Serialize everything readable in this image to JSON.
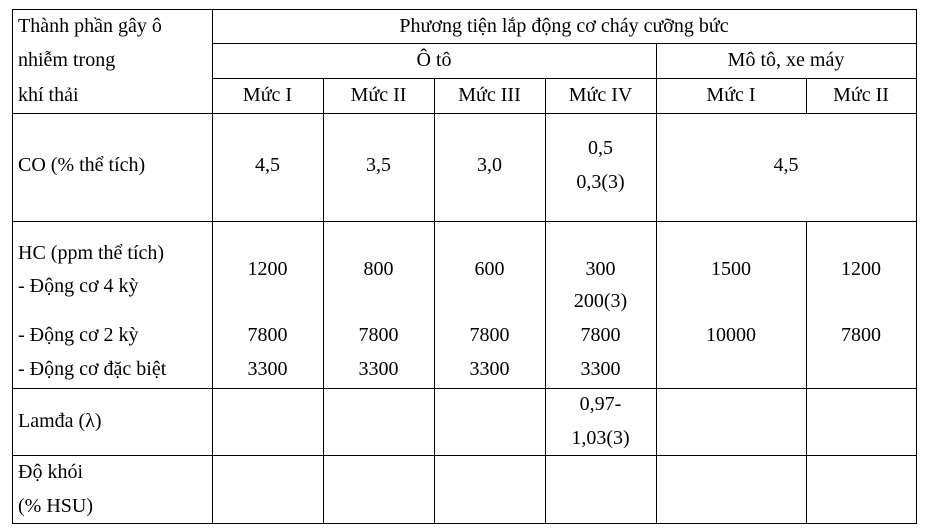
{
  "table": {
    "header": {
      "row_header": [
        "Thành phần gây ô",
        "nhiễm trong",
        "khí thải"
      ],
      "group": "Phương tiện lắp động cơ cháy cưỡng bức",
      "subgroups": [
        "Ô tô",
        "Mô tô, xe máy"
      ],
      "levels": [
        "Mức I",
        "Mức II",
        "Mức III",
        "Mức IV",
        "Mức I",
        "Mức II"
      ]
    },
    "rows": [
      {
        "label": [
          "CO (% thể tích)"
        ],
        "cells": [
          [
            "4,5"
          ],
          [
            "3,5"
          ],
          [
            "3,0"
          ],
          [
            "0,5",
            "0,3(3)"
          ]
        ],
        "moto_merged": "4,5"
      },
      {
        "label": [
          "HC (ppm thể tích)",
          "- Động cơ 4 kỳ",
          "- Động cơ 2 kỳ",
          "- Động cơ đặc biệt"
        ],
        "cells": [
          {
            "four_stroke": [
              "1200"
            ],
            "two_stroke": "7800",
            "special": "3300"
          },
          {
            "four_stroke": [
              "800"
            ],
            "two_stroke": "7800",
            "special": "3300"
          },
          {
            "four_stroke": [
              "600"
            ],
            "two_stroke": "7800",
            "special": "3300"
          },
          {
            "four_stroke": [
              "300",
              "200(3)"
            ],
            "two_stroke": "7800",
            "special": "3300"
          },
          {
            "four_stroke": [
              "1500"
            ],
            "two_stroke": "10000"
          },
          {
            "four_stroke": [
              "1200"
            ],
            "two_stroke": "7800"
          }
        ]
      },
      {
        "label": [
          "Lamđa (λ)"
        ],
        "cell_col4": [
          "0,97-",
          "1,03(3)"
        ]
      },
      {
        "label": [
          "Độ khói",
          "(% HSU)"
        ]
      }
    ]
  }
}
